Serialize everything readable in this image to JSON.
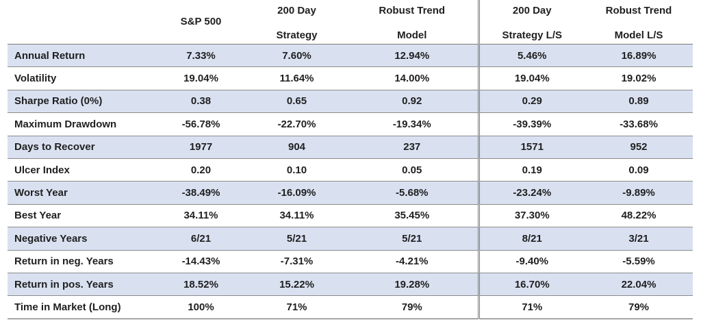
{
  "table": {
    "headers": [
      {
        "line1": "",
        "line2": ""
      },
      {
        "line1": "S&P 500",
        "line2": ""
      },
      {
        "line1": "200 Day",
        "line2": "Strategy"
      },
      {
        "line1": "Robust Trend",
        "line2": "Model"
      },
      {
        "line1": "200 Day",
        "line2": "Strategy L/S"
      },
      {
        "line1": "Robust Trend",
        "line2": "Model L/S"
      }
    ],
    "rows": [
      {
        "label": "Annual Return",
        "values": [
          "7.33%",
          "7.60%",
          "12.94%",
          "5.46%",
          "16.89%"
        ]
      },
      {
        "label": "Volatility",
        "values": [
          "19.04%",
          "11.64%",
          "14.00%",
          "19.04%",
          "19.02%"
        ]
      },
      {
        "label": "Sharpe Ratio (0%)",
        "values": [
          "0.38",
          "0.65",
          "0.92",
          "0.29",
          "0.89"
        ]
      },
      {
        "label": "Maximum Drawdown",
        "values": [
          "-56.78%",
          "-22.70%",
          "-19.34%",
          "-39.39%",
          "-33.68%"
        ]
      },
      {
        "label": "Days to Recover",
        "values": [
          "1977",
          "904",
          "237",
          "1571",
          "952"
        ]
      },
      {
        "label": "Ulcer Index",
        "values": [
          "0.20",
          "0.10",
          "0.05",
          "0.19",
          "0.09"
        ]
      },
      {
        "label": "Worst Year",
        "values": [
          "-38.49%",
          "-16.09%",
          "-5.68%",
          "-23.24%",
          "-9.89%"
        ]
      },
      {
        "label": "Best Year",
        "values": [
          "34.11%",
          "34.11%",
          "35.45%",
          "37.30%",
          "48.22%"
        ]
      },
      {
        "label": "Negative Years",
        "values": [
          "6/21",
          "5/21",
          "5/21",
          "8/21",
          "3/21"
        ]
      },
      {
        "label": "Return in neg. Years",
        "values": [
          "-14.43%",
          "-7.31%",
          "-4.21%",
          "-9.40%",
          "-5.59%"
        ]
      },
      {
        "label": "Return in pos. Years",
        "values": [
          "18.52%",
          "15.22%",
          "19.28%",
          "16.70%",
          "22.04%"
        ]
      },
      {
        "label": "Time in Market (Long)",
        "values": [
          "100%",
          "71%",
          "79%",
          "71%",
          "79%"
        ]
      }
    ],
    "shade_color": "#d9e1f1"
  }
}
